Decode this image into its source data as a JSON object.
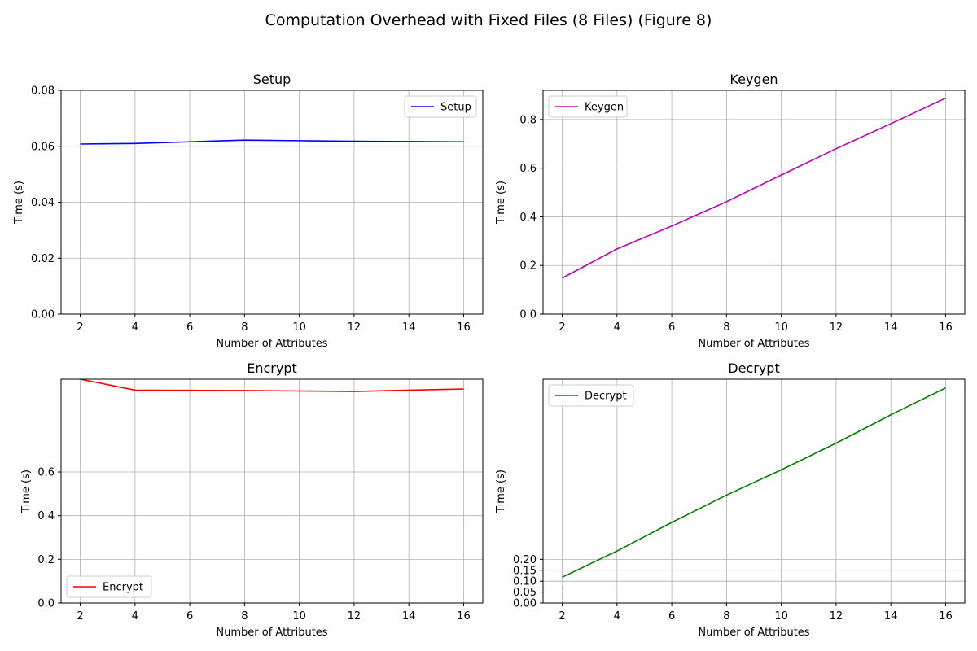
{
  "figure": {
    "title": "Computation Overhead with Fixed Files (8 Files) (Figure 8)"
  },
  "chart_data": [
    {
      "type": "line",
      "title": "Setup",
      "xlabel": "Number of Attributes",
      "ylabel": "Time (s)",
      "x": [
        2,
        4,
        6,
        8,
        10,
        12,
        14,
        16
      ],
      "xticks": [
        2,
        4,
        6,
        8,
        10,
        12,
        14,
        16
      ],
      "xlim": [
        1.3,
        16.7
      ],
      "ylim": [
        0,
        0.08
      ],
      "yticks": [
        0,
        0.02,
        0.04,
        0.06,
        0.08
      ],
      "ytick_labels": [
        "0.00",
        "0.02",
        "0.04",
        "0.06",
        "0.08"
      ],
      "grid": true,
      "legend": "upper-right",
      "series": [
        {
          "name": "Setup",
          "color": "#0000ff",
          "values": [
            0.0608,
            0.061,
            0.0616,
            0.0622,
            0.062,
            0.0618,
            0.0617,
            0.0616
          ]
        }
      ]
    },
    {
      "type": "line",
      "title": "Keygen",
      "xlabel": "Number of Attributes",
      "ylabel": "Time (s)",
      "x": [
        2,
        4,
        6,
        8,
        10,
        12,
        14,
        16
      ],
      "xticks": [
        2,
        4,
        6,
        8,
        10,
        12,
        14,
        16
      ],
      "xlim": [
        1.3,
        16.7
      ],
      "ylim": [
        0,
        0.92
      ],
      "yticks": [
        0,
        0.2,
        0.4,
        0.6,
        0.8
      ],
      "ytick_labels": [
        "0.0",
        "0.2",
        "0.4",
        "0.6",
        "0.8"
      ],
      "grid": true,
      "legend": "upper-left",
      "series": [
        {
          "name": "Keygen",
          "color": "#bf00bf",
          "values": [
            0.148,
            0.268,
            0.362,
            0.462,
            0.572,
            0.68,
            0.783,
            0.888
          ]
        }
      ]
    },
    {
      "type": "line",
      "title": "Encrypt",
      "xlabel": "Number of Attributes",
      "ylabel": "Time (s)",
      "x": [
        2,
        4,
        6,
        8,
        10,
        12,
        14,
        16
      ],
      "xticks": [
        2,
        4,
        6,
        8,
        10,
        12,
        14,
        16
      ],
      "xlim": [
        1.3,
        16.7
      ],
      "ylim": [
        0,
        1.025
      ],
      "yticks": [
        0,
        0.2,
        0.4,
        0.6
      ],
      "ytick_labels": [
        "0.0",
        "0.2",
        "0.4",
        "0.6"
      ],
      "grid": true,
      "legend": "lower-left",
      "series": [
        {
          "name": "Encrypt",
          "color": "#ff0000",
          "values": [
            1.025,
            0.975,
            0.974,
            0.973,
            0.971,
            0.969,
            0.975,
            0.98
          ]
        }
      ]
    },
    {
      "type": "line",
      "title": "Decrypt",
      "xlabel": "Number of Attributes",
      "ylabel": "Time (s)",
      "x": [
        2,
        4,
        6,
        8,
        10,
        12,
        14,
        16
      ],
      "xticks": [
        2,
        4,
        6,
        8,
        10,
        12,
        14,
        16
      ],
      "xlim": [
        1.3,
        16.7
      ],
      "ylim": [
        0,
        1.025
      ],
      "yticks": [
        0,
        0.05,
        0.1,
        0.15,
        0.2
      ],
      "ytick_labels": [
        "0.00",
        "0.05",
        "0.10",
        "0.15",
        "0.20"
      ],
      "grid": true,
      "legend": "upper-left",
      "series": [
        {
          "name": "Decrypt",
          "color": "#008000",
          "values": [
            0.118,
            0.238,
            0.369,
            0.494,
            0.61,
            0.732,
            0.862,
            0.985
          ]
        }
      ]
    }
  ]
}
